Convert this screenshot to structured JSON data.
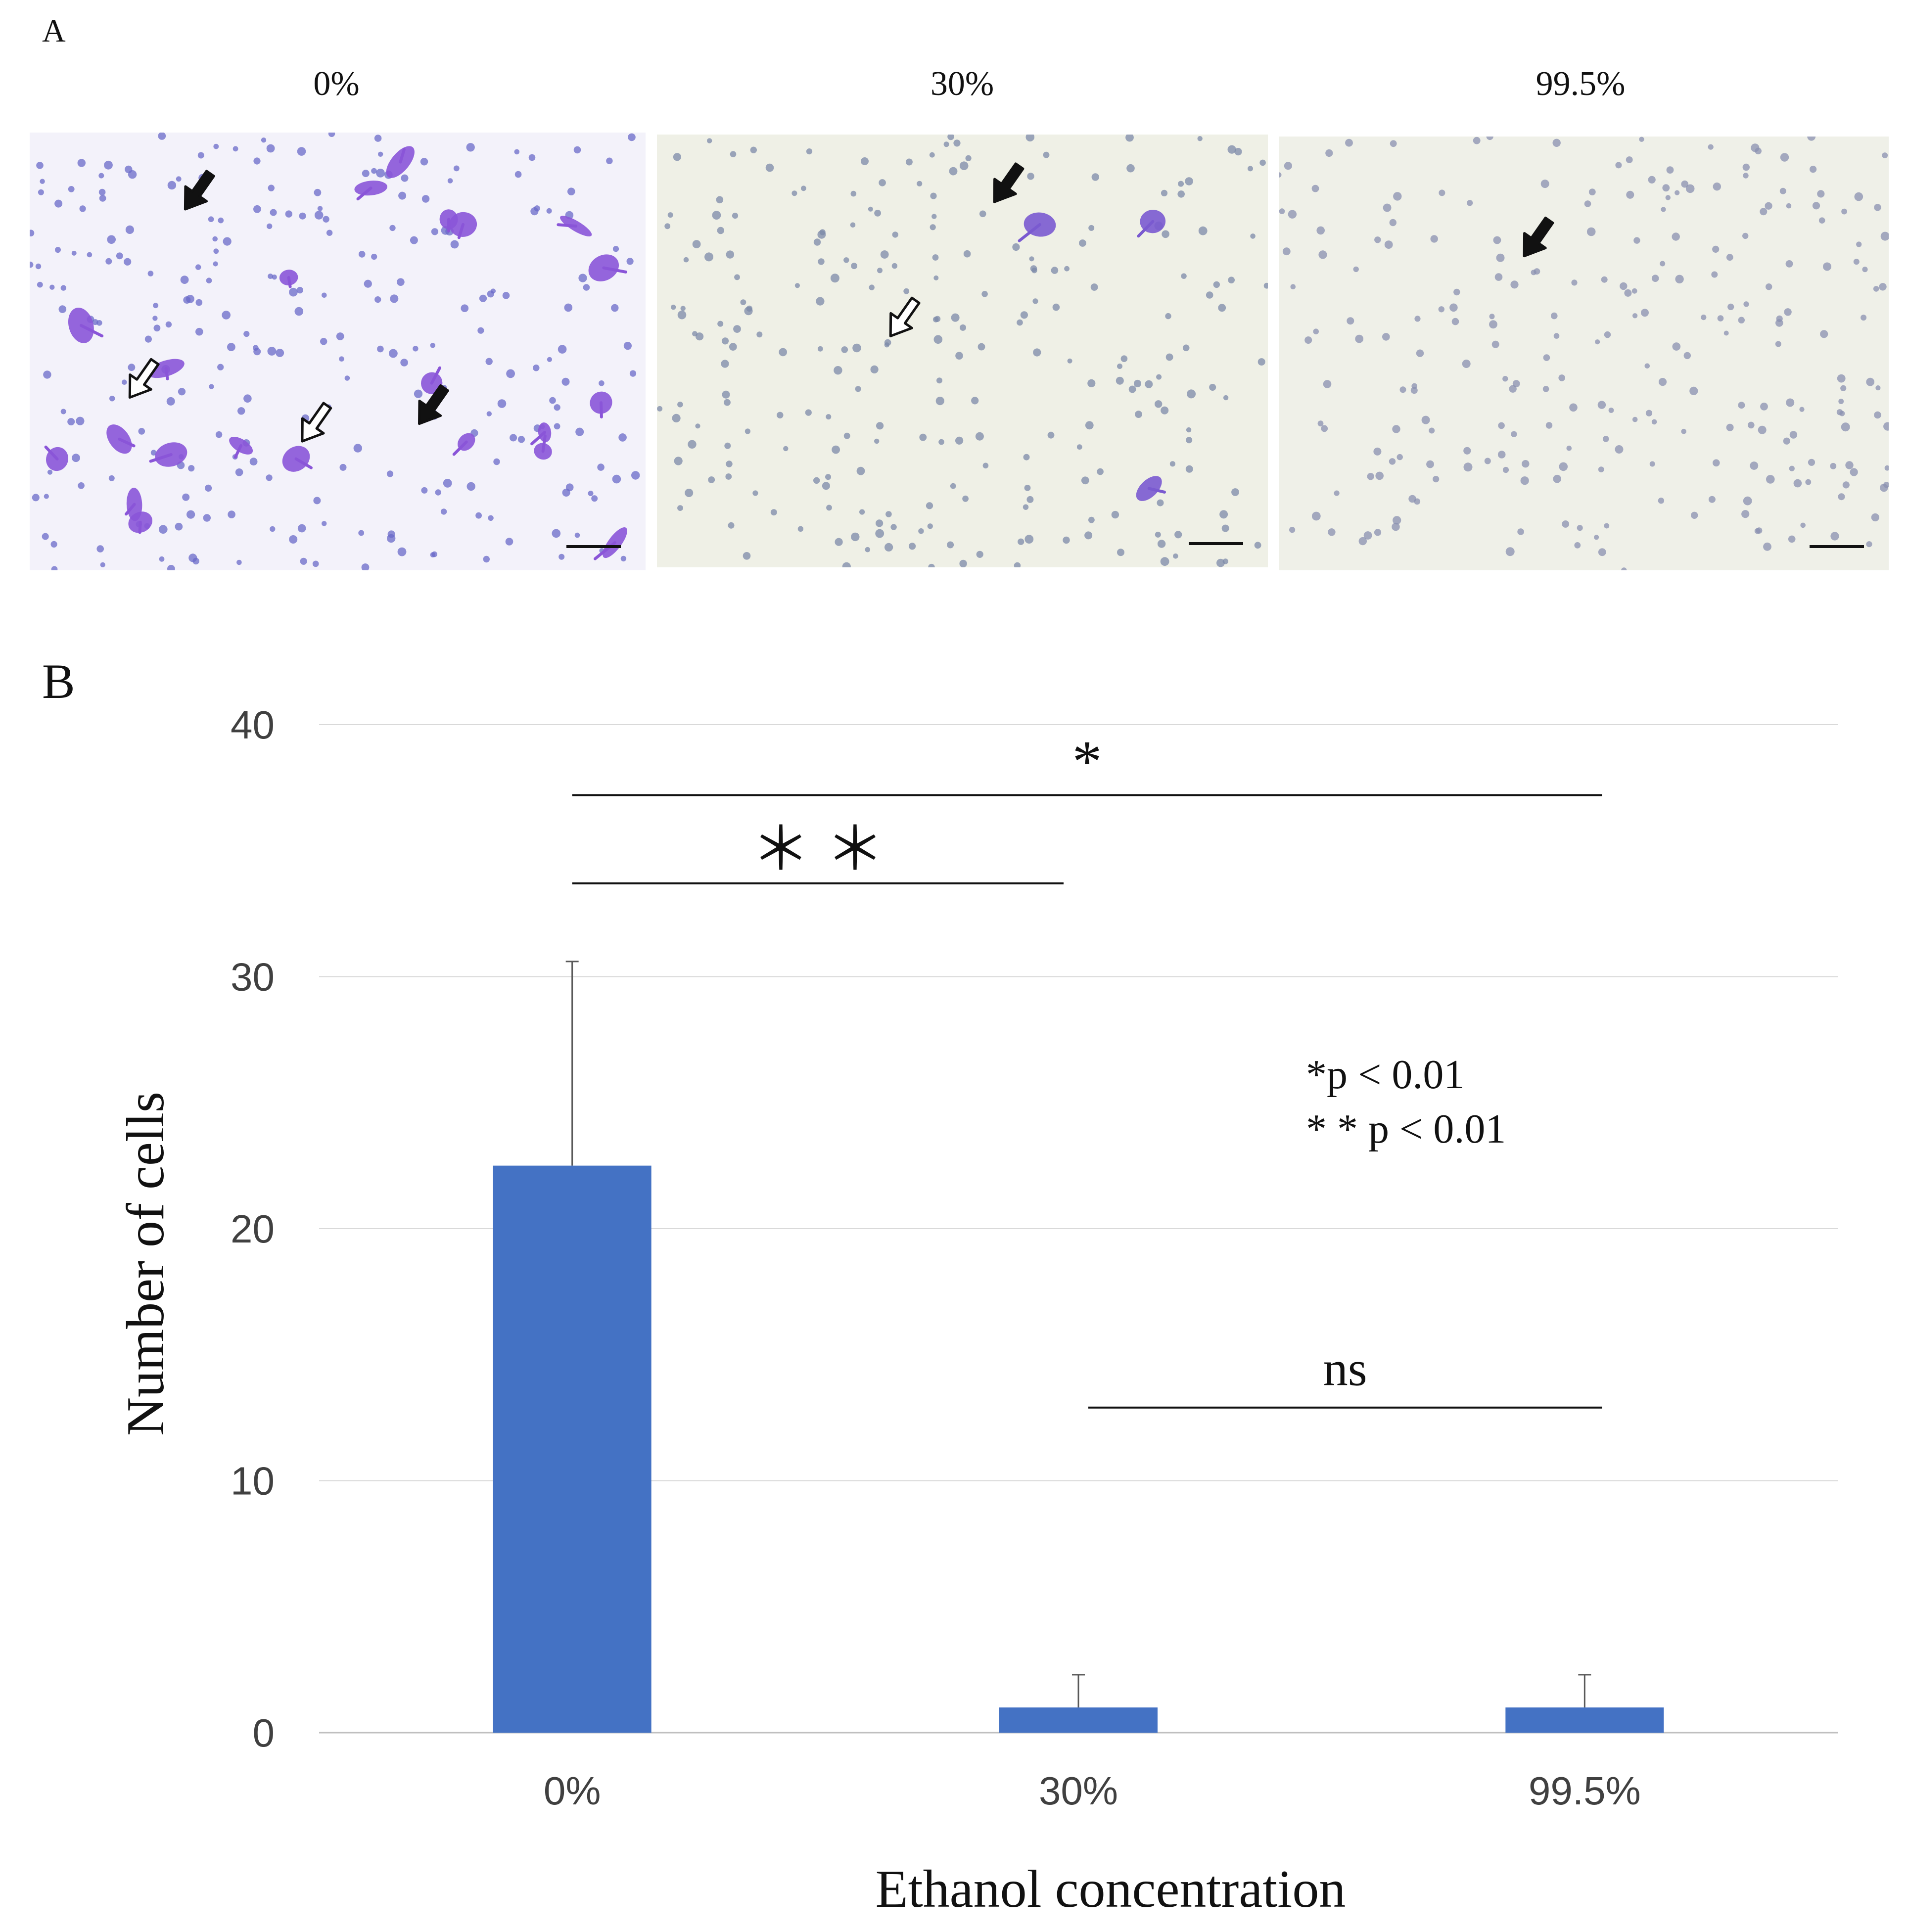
{
  "panel_a": {
    "letter": "A",
    "images": [
      {
        "title": "0%",
        "bg": "#f3f2fa",
        "cell_color": "#8a55d8",
        "nucleus_color": "#6a6ac8",
        "large_cells": 22,
        "small_nuclei": 260
      },
      {
        "title": "30%",
        "bg": "#eff0e6",
        "cell_color": "#7a5ad0",
        "nucleus_color": "#7c8aa8",
        "large_cells": 3,
        "small_nuclei": 240
      },
      {
        "title": "99.5%",
        "bg": "#eff0e8",
        "cell_color": "#7a5ad0",
        "nucleus_color": "#8a90b0",
        "large_cells": 0,
        "small_nuclei": 240
      }
    ],
    "arrows": [
      {
        "panel": 0,
        "style": "black",
        "fx": 0.27,
        "fy": 0.14
      },
      {
        "panel": 0,
        "style": "black",
        "fx": 0.65,
        "fy": 0.63
      },
      {
        "panel": 0,
        "style": "white",
        "fx": 0.18,
        "fy": 0.57
      },
      {
        "panel": 0,
        "style": "white",
        "fx": 0.46,
        "fy": 0.67
      },
      {
        "panel": 1,
        "style": "black",
        "fx": 0.57,
        "fy": 0.12
      },
      {
        "panel": 1,
        "style": "white",
        "fx": 0.4,
        "fy": 0.43
      },
      {
        "panel": 2,
        "style": "black",
        "fx": 0.42,
        "fy": 0.24
      }
    ]
  },
  "panel_b": {
    "letter": "B"
  },
  "chart_data": {
    "type": "bar",
    "categories": [
      "0%",
      "30%",
      "99.5%"
    ],
    "values": [
      22.5,
      1.0,
      1.0
    ],
    "error_plus": [
      8.1,
      1.3,
      1.3
    ],
    "xlabel": "Ethanol concentration",
    "ylabel": "Number of cells",
    "ylim": [
      0,
      40
    ],
    "yticks": [
      0,
      10,
      20,
      30,
      40
    ],
    "grid": true,
    "bar_color": "#4472c4",
    "significance": [
      {
        "from": 0,
        "to": 2,
        "label": "*",
        "y": 37.2
      },
      {
        "from": 0,
        "to": 1,
        "label": "＊ ＊",
        "y": 33.7
      },
      {
        "from": 1,
        "to": 2,
        "label": "ns",
        "y": 12.9
      }
    ],
    "legend": [
      "*p < 0.01",
      "* * p < 0.01"
    ]
  }
}
